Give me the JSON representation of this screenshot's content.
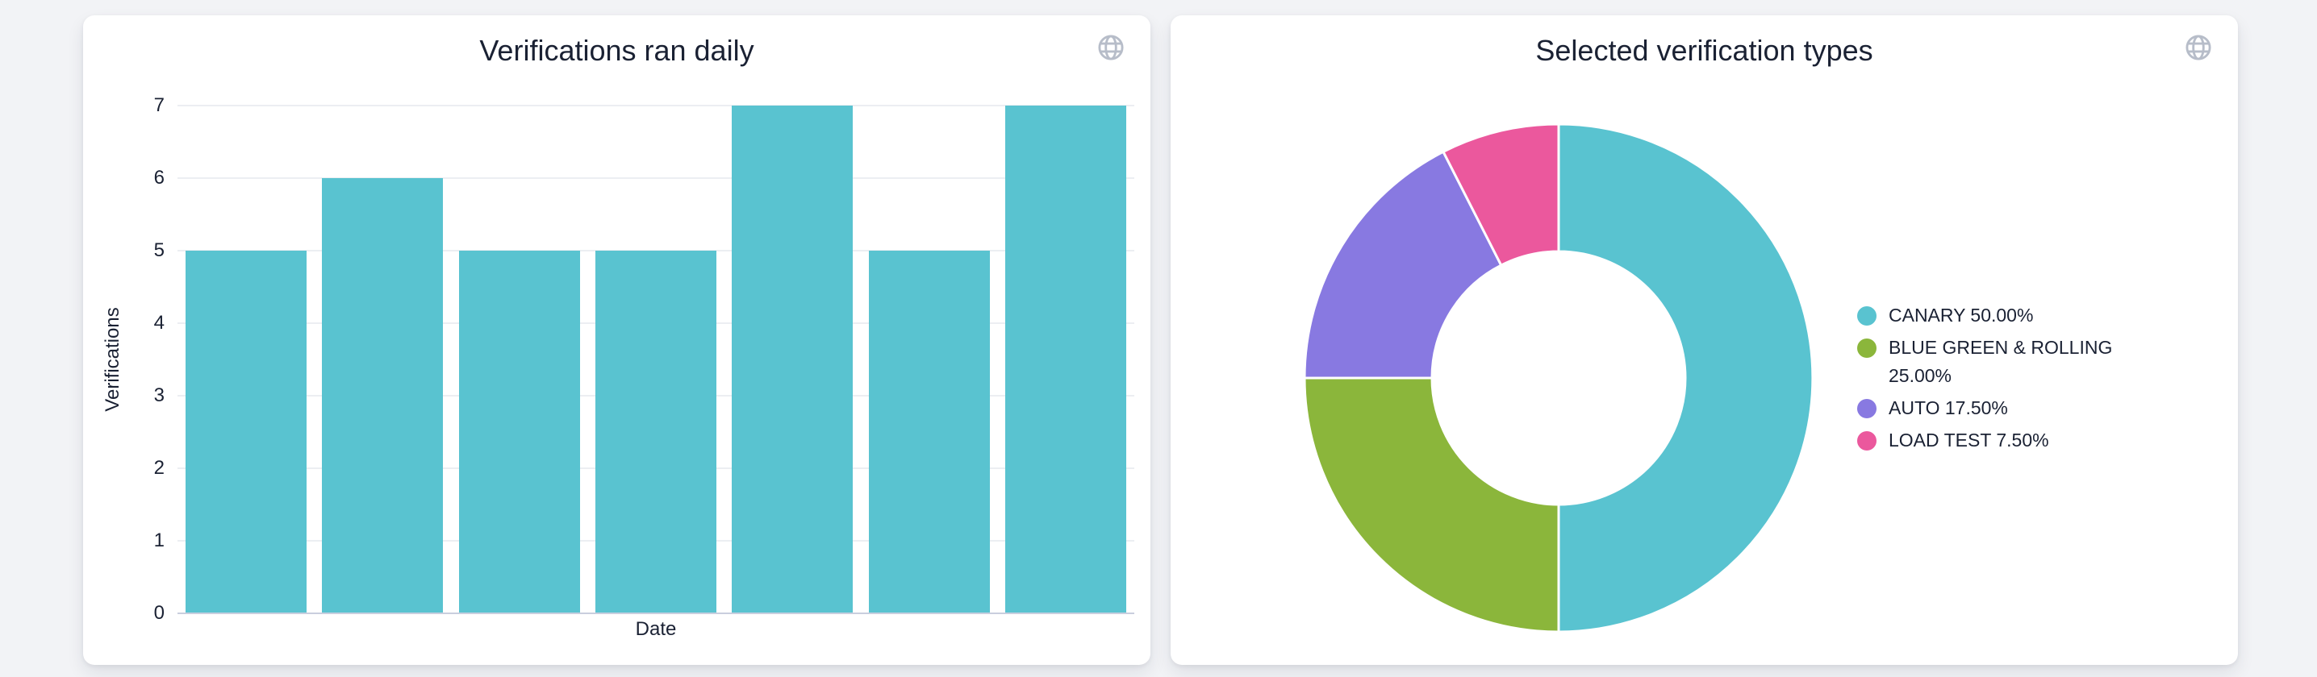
{
  "page": {
    "background": "#f2f3f6"
  },
  "cards": [
    {
      "title": "Verifications ran daily",
      "icon": "globe"
    },
    {
      "title": "Selected verification types",
      "icon": "globe"
    }
  ],
  "chart_data": [
    {
      "type": "bar",
      "title": "Verifications ran daily",
      "xlabel": "Date",
      "ylabel": "Verifications",
      "values": [
        5,
        6,
        5,
        5,
        7,
        5,
        7
      ],
      "x_tick_labels_visible": false,
      "yticks": [
        0,
        1,
        2,
        3,
        4,
        5,
        6,
        7
      ],
      "ylim": [
        0,
        7
      ],
      "grid": true,
      "legend": "none",
      "bar_color": "#59c3d0"
    },
    {
      "type": "pie",
      "subtype": "donut",
      "title": "Selected verification types",
      "cutout_ratio": 0.5,
      "start_angle_deg": 0,
      "direction": "clockwise",
      "legend_position": "right",
      "slices": [
        {
          "label": "CANARY",
          "value": 50.0,
          "text": "CANARY 50.00%",
          "color": "#59c3d0"
        },
        {
          "label": "BLUE GREEN & ROLLING",
          "value": 25.0,
          "text": "BLUE GREEN & ROLLING 25.00%",
          "color": "#8bb63b"
        },
        {
          "label": "AUTO",
          "value": 17.5,
          "text": "AUTO 17.50%",
          "color": "#8879e1"
        },
        {
          "label": "LOAD TEST",
          "value": 7.5,
          "text": "LOAD TEST 7.50%",
          "color": "#eb589d"
        }
      ]
    }
  ],
  "colors": {
    "card_bg": "#ffffff",
    "text": "#1a2133",
    "grid_line": "#eceef2",
    "axis_line": "#c9cede",
    "icon_gray": "#b7bdc9"
  }
}
